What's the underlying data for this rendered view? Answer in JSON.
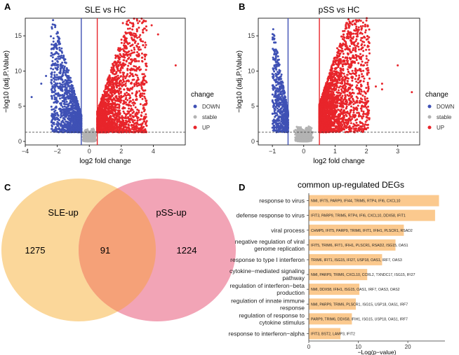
{
  "panels": {
    "A": {
      "letter": "A"
    },
    "B": {
      "letter": "B"
    },
    "C": {
      "letter": "C"
    },
    "D": {
      "letter": "D"
    }
  },
  "colors": {
    "down": "#3f51b5",
    "stable": "#b3b3b3",
    "up": "#e8252b",
    "sle": "#fbd79a",
    "pss": "#f2a4b6",
    "overlap": "#f5a178",
    "bar": "#fbc98e"
  },
  "chart_data": [
    {
      "type": "scatter",
      "id": "A",
      "title": "SLE vs HC",
      "xlabel": "log2 fold change",
      "ylabel": "−log10 (adj.P.Value)",
      "xlim": [
        -4,
        6
      ],
      "ylim": [
        -0.5,
        17.5
      ],
      "xticks": [
        -4,
        -2,
        0,
        2,
        4
      ],
      "yticks": [
        0,
        5,
        10,
        15
      ],
      "xtick_labels": [
        "−4",
        "−2",
        "0",
        "2",
        "4"
      ],
      "ytick_labels": [
        "0",
        "5",
        "10",
        "15"
      ],
      "fc_threshold": 0.5,
      "p_threshold": 1.3,
      "legend": {
        "title": "change",
        "items": [
          "DOWN",
          "stable",
          "UP"
        ]
      },
      "outliers": [
        [
          -3.6,
          6.3
        ],
        [
          -2.7,
          9.3
        ],
        [
          -3.0,
          8.2
        ],
        [
          -2.2,
          7.0
        ],
        [
          5.4,
          10.8
        ],
        [
          4.3,
          15.2
        ],
        [
          3.9,
          16.5
        ],
        [
          3.3,
          16.8
        ],
        [
          2.1,
          16.8
        ],
        [
          -2.0,
          11.4
        ]
      ]
    },
    {
      "type": "scatter",
      "id": "B",
      "title": "pSS vs HC",
      "xlabel": "log2 fold change",
      "ylabel": "−log10 (adj.P.Value)",
      "xlim": [
        -1.45,
        3.7
      ],
      "ylim": [
        -0.5,
        17.5
      ],
      "xticks": [
        -1,
        0,
        1,
        2,
        3
      ],
      "yticks": [
        0,
        5,
        10,
        15
      ],
      "xtick_labels": [
        "−1",
        "0",
        "1",
        "2",
        "3"
      ],
      "ytick_labels": [
        "0",
        "5",
        "10",
        "15"
      ],
      "fc_threshold": 0.5,
      "p_threshold": 1.3,
      "legend": {
        "title": "change",
        "items": [
          "DOWN",
          "stable",
          "UP"
        ]
      },
      "outliers": [
        [
          3.45,
          7.0
        ],
        [
          2.5,
          8.2
        ],
        [
          2.5,
          7.4
        ],
        [
          2.3,
          7.8
        ],
        [
          3.0,
          10.8
        ],
        [
          2.1,
          12.5
        ]
      ]
    },
    {
      "type": "venn",
      "id": "C",
      "sets": [
        {
          "label": "SLE-up",
          "only": "1275"
        },
        {
          "label": "pSS-up",
          "only": "1224"
        }
      ],
      "intersection": "91"
    },
    {
      "type": "bar",
      "id": "D",
      "title": "common up-regulated DEGs",
      "xlabel": "−Log(p−value)",
      "xlim": [
        0,
        27.5
      ],
      "xticks": [
        0,
        10,
        20
      ],
      "xtick_labels": [
        "0",
        "10",
        "20"
      ],
      "bars": [
        {
          "label": [
            "response to virus"
          ],
          "value": 26.3,
          "genes": "NMI, IFIT5, PARP9, IFI44, TRIM5, RTP4, IFI6, CXCL10"
        },
        {
          "label": [
            "defense response to virus"
          ],
          "value": 25.5,
          "genes": "IFIT3, PARP9, TRIM5, RTP4, IFI6, CXCL10, DDX58, IFIT1"
        },
        {
          "label": [
            "viral process"
          ],
          "value": 19.2,
          "genes": "CHMP5, IFIT5, PARP9, TRIM6, IFIT1, IFIH1, PLSCR1, RSAD2"
        },
        {
          "label": [
            "negative regulation of viral",
            "genome replication"
          ],
          "value": 17.5,
          "genes": "IFIT5, TRIM6, IFIT1, IFIH1, PLSCR1, RSAD2, ISG15, OAS1"
        },
        {
          "label": [
            "response to type I interferon"
          ],
          "value": 14.8,
          "genes": "TRIM6, IFIT1, ISG15, IFI27, USP18, OAS1, IRF7, OAS3"
        },
        {
          "label": [
            "cytokine−mediated signaling",
            "pathway"
          ],
          "value": 11.8,
          "genes": "NMI, PARP9, TRIM6, CXCL10, CCRL2, TXNDC17, ISG15, IFI27"
        },
        {
          "label": [
            "regulation of interferon−beta",
            "production"
          ],
          "value": 10.2,
          "genes": "NMI, DDX58, IFIH1, ISG15, OAS1, IRF7, OAS3, OAS2"
        },
        {
          "label": [
            "regulation of innate immune",
            "response"
          ],
          "value": 9.5,
          "genes": "NMI, PARP9, TRIM6, PLSCR1, ISG15, USP18, OAS1, IRF7"
        },
        {
          "label": [
            "regulation of response to",
            "cytokine stimulus"
          ],
          "value": 8.7,
          "genes": "PARP9, TRIM6, DDX58, IFIH1, ISG15, USP18, OAS1, IRF7"
        },
        {
          "label": [
            "response to interferon−alpha"
          ],
          "value": 6.4,
          "genes": "IFIT3, BST2, LAMP3, IFIT2"
        }
      ]
    }
  ]
}
